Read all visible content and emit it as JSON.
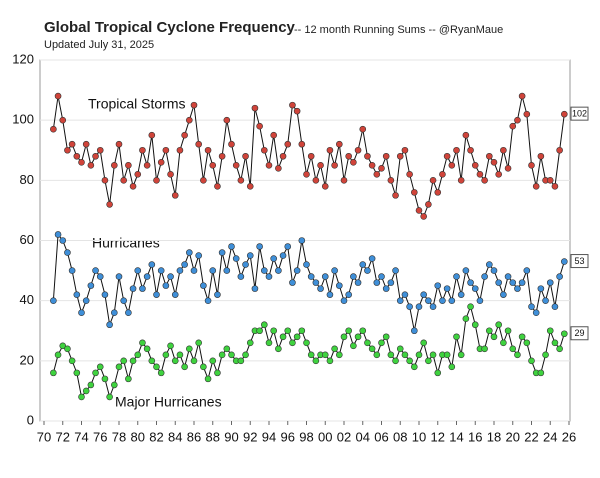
{
  "chart_data": {
    "type": "line",
    "title": "Global Tropical Cyclone Frequency",
    "subtitle": "-- 12 month Running Sums -- @RyanMaue",
    "updated": "Updated July 31, 2025",
    "annotations": [
      "Tropical Storms",
      "Hurricanes",
      "Major Hurricanes"
    ],
    "x": [
      1971,
      1971.5,
      1972,
      1972.5,
      1973,
      1973.5,
      1974,
      1974.5,
      1975,
      1975.5,
      1976,
      1976.5,
      1977,
      1977.5,
      1978,
      1978.5,
      1979,
      1979.5,
      1980,
      1980.5,
      1981,
      1981.5,
      1982,
      1982.5,
      1983,
      1983.5,
      1984,
      1984.5,
      1985,
      1985.5,
      1986,
      1986.5,
      1987,
      1987.5,
      1988,
      1988.5,
      1989,
      1989.5,
      1990,
      1990.5,
      1991,
      1991.5,
      1992,
      1992.5,
      1993,
      1993.5,
      1994,
      1994.5,
      1995,
      1995.5,
      1996,
      1996.5,
      1997,
      1997.5,
      1998,
      1998.5,
      1999,
      1999.5,
      2000,
      2000.5,
      2001,
      2001.5,
      2002,
      2002.5,
      2003,
      2003.5,
      2004,
      2004.5,
      2005,
      2005.5,
      2006,
      2006.5,
      2007,
      2007.5,
      2008,
      2008.5,
      2009,
      2009.5,
      2010,
      2010.5,
      2011,
      2011.5,
      2012,
      2012.5,
      2013,
      2013.5,
      2014,
      2014.5,
      2015,
      2015.5,
      2016,
      2016.5,
      2017,
      2017.5,
      2018,
      2018.5,
      2019,
      2019.5,
      2020,
      2020.5,
      2021,
      2021.5,
      2022,
      2022.5,
      2023,
      2023.5,
      2024,
      2024.5,
      2025,
      2025.5
    ],
    "series": [
      {
        "name": "Tropical Storms",
        "color": "#d0443a",
        "values": [
          97,
          108,
          100,
          90,
          92,
          88,
          86,
          92,
          85,
          88,
          90,
          80,
          72,
          85,
          92,
          80,
          85,
          78,
          82,
          90,
          85,
          95,
          80,
          86,
          90,
          82,
          75,
          90,
          95,
          100,
          105,
          92,
          80,
          90,
          85,
          78,
          88,
          100,
          92,
          85,
          80,
          88,
          78,
          104,
          98,
          90,
          85,
          95,
          84,
          88,
          92,
          105,
          103,
          92,
          82,
          88,
          80,
          85,
          78,
          90,
          85,
          92,
          80,
          88,
          86,
          90,
          97,
          88,
          85,
          82,
          84,
          88,
          80,
          75,
          88,
          90,
          82,
          76,
          70,
          68,
          72,
          80,
          76,
          82,
          88,
          85,
          90,
          80,
          95,
          90,
          85,
          82,
          80,
          88,
          86,
          82,
          90,
          84,
          98,
          100,
          108,
          102,
          85,
          78,
          88,
          80,
          80,
          78,
          90,
          102
        ]
      },
      {
        "name": "Hurricanes",
        "color": "#3f8fd8",
        "values": [
          40,
          62,
          60,
          56,
          50,
          42,
          36,
          40,
          45,
          50,
          48,
          42,
          32,
          36,
          48,
          40,
          36,
          44,
          50,
          44,
          48,
          52,
          42,
          50,
          45,
          48,
          42,
          50,
          52,
          56,
          50,
          55,
          45,
          40,
          50,
          42,
          56,
          50,
          58,
          54,
          48,
          52,
          55,
          44,
          58,
          50,
          48,
          54,
          50,
          55,
          58,
          46,
          50,
          60,
          52,
          48,
          46,
          44,
          48,
          42,
          50,
          45,
          40,
          42,
          48,
          46,
          52,
          50,
          54,
          46,
          48,
          44,
          46,
          50,
          40,
          42,
          38,
          30,
          38,
          42,
          40,
          38,
          45,
          40,
          44,
          40,
          48,
          42,
          50,
          46,
          44,
          40,
          48,
          52,
          50,
          46,
          42,
          48,
          46,
          44,
          46,
          50,
          38,
          36,
          44,
          40,
          46,
          38,
          48,
          53
        ]
      },
      {
        "name": "Major Hurricanes",
        "color": "#3fd23f",
        "values": [
          16,
          22,
          25,
          24,
          20,
          16,
          8,
          10,
          12,
          16,
          18,
          14,
          8,
          12,
          18,
          20,
          14,
          20,
          22,
          26,
          24,
          20,
          18,
          16,
          22,
          25,
          20,
          22,
          18,
          24,
          20,
          26,
          18,
          14,
          20,
          16,
          22,
          24,
          22,
          20,
          20,
          22,
          26,
          30,
          30,
          32,
          26,
          30,
          24,
          28,
          30,
          26,
          28,
          30,
          26,
          22,
          20,
          22,
          22,
          20,
          24,
          22,
          28,
          30,
          25,
          28,
          30,
          26,
          24,
          22,
          26,
          28,
          22,
          20,
          24,
          22,
          20,
          18,
          22,
          26,
          20,
          22,
          16,
          22,
          22,
          18,
          28,
          22,
          34,
          38,
          32,
          24,
          24,
          30,
          28,
          32,
          26,
          30,
          24,
          22,
          28,
          26,
          20,
          16,
          16,
          22,
          30,
          26,
          24,
          29
        ]
      }
    ],
    "xlim": [
      1970,
      2026
    ],
    "xticks": [
      {
        "value": 1970,
        "label": "70"
      },
      {
        "value": 1972,
        "label": "72"
      },
      {
        "value": 1974,
        "label": "74"
      },
      {
        "value": 1976,
        "label": "76"
      },
      {
        "value": 1978,
        "label": "78"
      },
      {
        "value": 1980,
        "label": "80"
      },
      {
        "value": 1982,
        "label": "82"
      },
      {
        "value": 1984,
        "label": "84"
      },
      {
        "value": 1986,
        "label": "86"
      },
      {
        "value": 1988,
        "label": "88"
      },
      {
        "value": 1990,
        "label": "90"
      },
      {
        "value": 1992,
        "label": "92"
      },
      {
        "value": 1994,
        "label": "94"
      },
      {
        "value": 1996,
        "label": "96"
      },
      {
        "value": 1998,
        "label": "98"
      },
      {
        "value": 2000,
        "label": "00"
      },
      {
        "value": 2002,
        "label": "02"
      },
      {
        "value": 2004,
        "label": "04"
      },
      {
        "value": 2006,
        "label": "06"
      },
      {
        "value": 2008,
        "label": "08"
      },
      {
        "value": 2010,
        "label": "10"
      },
      {
        "value": 2012,
        "label": "12"
      },
      {
        "value": 2014,
        "label": "14"
      },
      {
        "value": 2016,
        "label": "16"
      },
      {
        "value": 2018,
        "label": "18"
      },
      {
        "value": 2020,
        "label": "20"
      },
      {
        "value": 2022,
        "label": "22"
      },
      {
        "value": 2024,
        "label": "24"
      },
      {
        "value": 2026,
        "label": "26"
      }
    ],
    "ylim": [
      0,
      120
    ],
    "yticks": [
      0,
      20,
      40,
      60,
      80,
      100,
      120
    ],
    "grid": true
  }
}
